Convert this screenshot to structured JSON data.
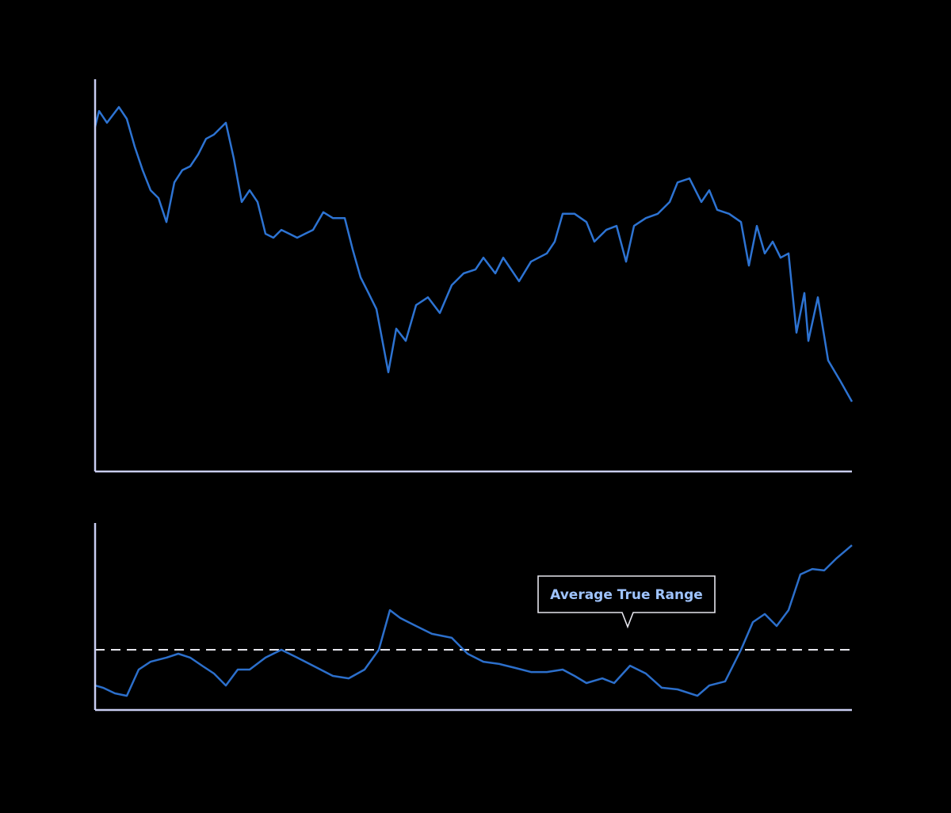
{
  "chart_data": [
    {
      "type": "line",
      "xlim": [
        0,
        955
      ],
      "ylim": [
        0,
        100
      ],
      "series": [
        {
          "color": "#2d73d2",
          "x": [
            0,
            5,
            15,
            30,
            40,
            50,
            60,
            70,
            80,
            90,
            100,
            110,
            120,
            130,
            140,
            150,
            165,
            175,
            185,
            195,
            205,
            215,
            225,
            235,
            245,
            255,
            265,
            275,
            288,
            300,
            315,
            325,
            335,
            345,
            355,
            370,
            380,
            392,
            405,
            420,
            435,
            450,
            465,
            480,
            490,
            505,
            515,
            535,
            550,
            570,
            580,
            590,
            605,
            620,
            630,
            645,
            658,
            670,
            680,
            695,
            710,
            725,
            735,
            750,
            765,
            775,
            785,
            800,
            815,
            825,
            835,
            845,
            855,
            865,
            875,
            885,
            895,
            900,
            912,
            925,
            940,
            955
          ],
          "values": [
            87.9,
            91.9,
            88.9,
            92.9,
            89.9,
            82.8,
            76.8,
            71.7,
            69.7,
            63.6,
            73.7,
            76.8,
            77.8,
            80.8,
            84.8,
            85.9,
            88.9,
            79.8,
            68.7,
            71.7,
            68.7,
            60.6,
            59.6,
            61.6,
            60.6,
            59.6,
            60.6,
            61.6,
            66.1,
            64.6,
            64.6,
            56.6,
            49.5,
            45.5,
            41.4,
            25.3,
            36.4,
            33.3,
            42.4,
            44.4,
            40.4,
            47.5,
            50.5,
            51.5,
            54.5,
            50.5,
            54.5,
            48.5,
            53.5,
            55.6,
            58.6,
            65.7,
            65.7,
            63.6,
            58.6,
            61.6,
            62.6,
            53.5,
            62.6,
            64.6,
            65.7,
            68.7,
            73.7,
            74.7,
            68.7,
            71.7,
            66.7,
            65.7,
            63.6,
            52.5,
            62.6,
            55.6,
            58.6,
            54.5,
            55.6,
            35.4,
            45.5,
            33.3,
            44.4,
            28.3,
            23.2,
            17.8
          ]
        }
      ]
    },
    {
      "type": "line",
      "xlim": [
        0,
        955
      ],
      "ylim": [
        0,
        100
      ],
      "annotation": "Average True Range",
      "hline": 32.2,
      "series": [
        {
          "color": "#2c6fcb",
          "x": [
            0,
            10,
            25,
            40,
            55,
            70,
            90,
            105,
            120,
            135,
            150,
            165,
            180,
            195,
            215,
            235,
            255,
            275,
            300,
            320,
            340,
            358,
            372,
            385,
            405,
            425,
            450,
            470,
            490,
            510,
            530,
            550,
            570,
            590,
            605,
            620,
            640,
            655,
            675,
            695,
            715,
            735,
            760,
            775,
            795,
            815,
            830,
            845,
            860,
            875,
            890,
            905,
            920,
            935,
            955
          ],
          "values": [
            13.1,
            11.9,
            8.9,
            7.6,
            21.6,
            25.8,
            28.0,
            30.1,
            28.0,
            23.7,
            19.5,
            13.1,
            21.6,
            21.6,
            28.0,
            32.2,
            28.0,
            23.7,
            18.2,
            16.9,
            21.6,
            32.2,
            53.4,
            49.2,
            44.9,
            40.7,
            38.6,
            30.1,
            25.8,
            24.6,
            22.5,
            20.3,
            20.3,
            21.6,
            18.2,
            14.4,
            16.9,
            14.4,
            23.7,
            19.5,
            11.9,
            11.0,
            7.6,
            13.1,
            15.3,
            32.2,
            47.0,
            51.3,
            44.9,
            53.4,
            72.5,
            75.4,
            74.6,
            80.9,
            88.1
          ]
        }
      ]
    }
  ]
}
